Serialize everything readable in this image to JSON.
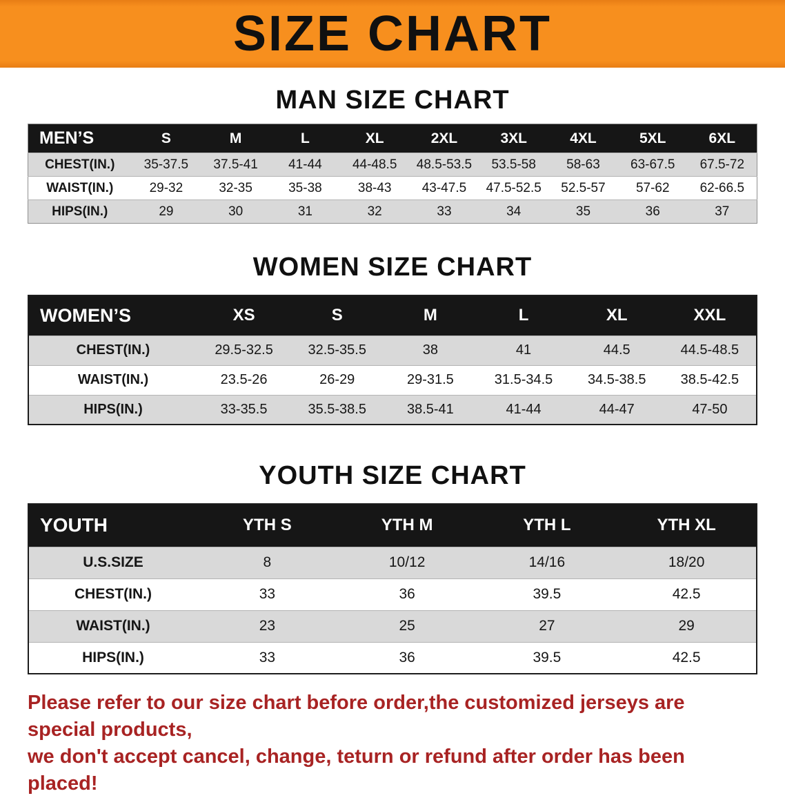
{
  "banner": {
    "title": "SIZE CHART"
  },
  "colors": {
    "banner_orange": "#f78f1e",
    "table_header_black": "#161616",
    "row_shade_gray": "#d9d9d9",
    "disclaimer_red": "#a82323"
  },
  "sections": [
    {
      "id": "men",
      "heading": "MAN SIZE CHART",
      "table": {
        "corner": "MEN’S",
        "columns": [
          "S",
          "M",
          "L",
          "XL",
          "2XL",
          "3XL",
          "4XL",
          "5XL",
          "6XL"
        ],
        "rows": [
          {
            "label": "CHEST(IN.)",
            "values": [
              "35-37.5",
              "37.5-41",
              "41-44",
              "44-48.5",
              "48.5-53.5",
              "53.5-58",
              "58-63",
              "63-67.5",
              "67.5-72"
            ]
          },
          {
            "label": "WAIST(IN.)",
            "values": [
              "29-32",
              "32-35",
              "35-38",
              "38-43",
              "43-47.5",
              "47.5-52.5",
              "52.5-57",
              "57-62",
              "62-66.5"
            ]
          },
          {
            "label": "HIPS(IN.)",
            "values": [
              "29",
              "30",
              "31",
              "32",
              "33",
              "34",
              "35",
              "36",
              "37"
            ]
          }
        ]
      }
    },
    {
      "id": "women",
      "heading": "WOMEN SIZE CHART",
      "table": {
        "corner": "WOMEN’S",
        "columns": [
          "XS",
          "S",
          "M",
          "L",
          "XL",
          "XXL"
        ],
        "rows": [
          {
            "label": "CHEST(IN.)",
            "values": [
              "29.5-32.5",
              "32.5-35.5",
              "38",
              "41",
              "44.5",
              "44.5-48.5"
            ]
          },
          {
            "label": "WAIST(IN.)",
            "values": [
              "23.5-26",
              "26-29",
              "29-31.5",
              "31.5-34.5",
              "34.5-38.5",
              "38.5-42.5"
            ]
          },
          {
            "label": "HIPS(IN.)",
            "values": [
              "33-35.5",
              "35.5-38.5",
              "38.5-41",
              "41-44",
              "44-47",
              "47-50"
            ]
          }
        ]
      }
    },
    {
      "id": "youth",
      "heading": "YOUTH SIZE CHART",
      "table": {
        "corner": "YOUTH",
        "columns": [
          "YTH S",
          "YTH M",
          "YTH L",
          "YTH XL"
        ],
        "rows": [
          {
            "label": "U.S.SIZE",
            "values": [
              "8",
              "10/12",
              "14/16",
              "18/20"
            ]
          },
          {
            "label": "CHEST(IN.)",
            "values": [
              "33",
              "36",
              "39.5",
              "42.5"
            ]
          },
          {
            "label": "WAIST(IN.)",
            "values": [
              "23",
              "25",
              "27",
              "29"
            ]
          },
          {
            "label": "HIPS(IN.)",
            "values": [
              "33",
              "36",
              "39.5",
              "42.5"
            ]
          }
        ]
      }
    }
  ],
  "disclaimer": {
    "line1": "Please refer to our size chart before order,the customized jerseys are special products,",
    "line2": "we don't accept cancel, change, teturn or refund after order has been placed!"
  }
}
